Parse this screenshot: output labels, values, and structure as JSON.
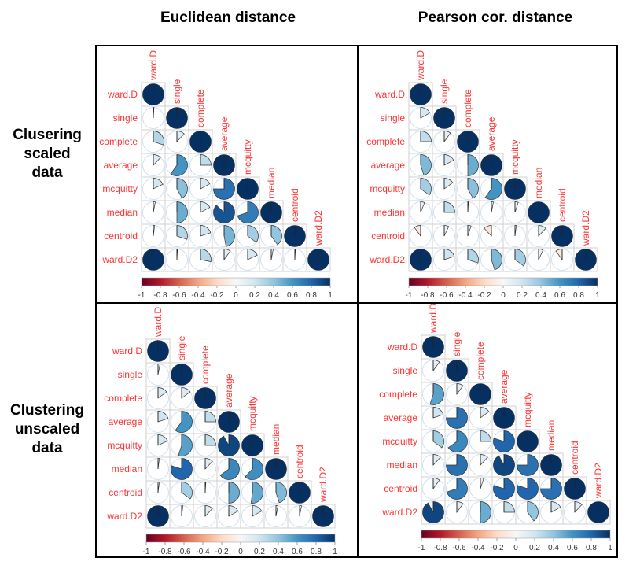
{
  "column_titles": [
    "Euclidean distance",
    "Pearson cor. distance"
  ],
  "row_titles": [
    [
      "Clusering",
      "scaled",
      "data"
    ],
    [
      "Clustering",
      "unscaled",
      "data"
    ]
  ],
  "colors": {
    "label": "#FF3333",
    "scale": [
      "#67001F",
      "#B2182B",
      "#D6604D",
      "#F4A582",
      "#FDDBC7",
      "#F7F7F7",
      "#D1E5F0",
      "#92C5DE",
      "#4393C3",
      "#2166AC",
      "#053061"
    ]
  },
  "chart_data": [
    {
      "type": "heatmap",
      "style": "corrplot-pie-lower",
      "title": "",
      "row_labels": [
        "ward.D",
        "single",
        "complete",
        "average",
        "mcquitty",
        "median",
        "centroid",
        "ward.D2"
      ],
      "col_labels": [
        "ward.D",
        "single",
        "complete",
        "average",
        "mcquitty",
        "median",
        "centroid",
        "ward.D2"
      ],
      "colorbar_ticks": [
        "-1",
        "-0.8",
        "-0.6",
        "-0.4",
        "-0.2",
        "0",
        "0.2",
        "0.4",
        "0.6",
        "0.8",
        "1"
      ],
      "value_range": [
        -1,
        1
      ],
      "lower": [
        [],
        [
          0.01
        ],
        [
          0.3,
          0.12
        ],
        [
          0.12,
          0.6,
          0.25
        ],
        [
          0.18,
          0.42,
          0.17,
          0.75
        ],
        [
          0.03,
          0.5,
          0.17,
          0.87,
          0.7
        ],
        [
          0.02,
          0.3,
          0.2,
          0.47,
          0.35,
          0.4
        ],
        [
          1.0,
          0.01,
          0.28,
          0.1,
          0.18,
          0.03,
          0.01
        ]
      ]
    },
    {
      "type": "heatmap",
      "style": "corrplot-pie-lower",
      "title": "",
      "row_labels": [
        "ward.D",
        "single",
        "complete",
        "average",
        "mcquitty",
        "median",
        "centroid",
        "ward.D2"
      ],
      "col_labels": [
        "ward.D",
        "single",
        "complete",
        "average",
        "mcquitty",
        "median",
        "centroid",
        "ward.D2"
      ],
      "colorbar_ticks": [
        "-1",
        "-0.8",
        "-0.6",
        "-0.4",
        "-0.2",
        "0",
        "0.2",
        "0.4",
        "0.6",
        "0.8",
        "1"
      ],
      "value_range": [
        -1,
        1
      ],
      "lower": [
        [],
        [
          0.17
        ],
        [
          0.25,
          0.1
        ],
        [
          0.45,
          0.17,
          0.5
        ],
        [
          0.35,
          0.15,
          0.42,
          0.6
        ],
        [
          0.06,
          0.25,
          0.01,
          0.03,
          0.05
        ],
        [
          -0.1,
          0.07,
          0.05,
          -0.12,
          0.02,
          0.12
        ],
        [
          1.0,
          0.2,
          0.3,
          0.45,
          0.35,
          0.07,
          -0.1
        ]
      ]
    },
    {
      "type": "heatmap",
      "style": "corrplot-pie-lower",
      "title": "",
      "row_labels": [
        "ward.D",
        "single",
        "complete",
        "average",
        "mcquitty",
        "median",
        "centroid",
        "ward.D2"
      ],
      "col_labels": [
        "ward.D",
        "single",
        "complete",
        "average",
        "mcquitty",
        "median",
        "centroid",
        "ward.D2"
      ],
      "colorbar_ticks": [
        "-1",
        "-0.8",
        "-0.6",
        "-0.4",
        "-0.2",
        "0",
        "0.2",
        "0.4",
        "0.6",
        "0.8",
        "1"
      ],
      "value_range": [
        -1,
        1
      ],
      "lower": [
        [],
        [
          0.03
        ],
        [
          0.15,
          0.15
        ],
        [
          0.2,
          0.6,
          0.25
        ],
        [
          0.18,
          0.55,
          0.25,
          0.92
        ],
        [
          0.02,
          0.8,
          0.12,
          0.65,
          0.62
        ],
        [
          0.02,
          0.35,
          0.01,
          0.5,
          0.52,
          0.45
        ],
        [
          1.0,
          0.02,
          0.12,
          0.17,
          0.17,
          0.03,
          0.03
        ]
      ]
    },
    {
      "type": "heatmap",
      "style": "corrplot-pie-lower",
      "title": "",
      "row_labels": [
        "ward.D",
        "single",
        "complete",
        "average",
        "mcquitty",
        "median",
        "centroid",
        "ward.D2"
      ],
      "col_labels": [
        "ward.D",
        "single",
        "complete",
        "average",
        "mcquitty",
        "median",
        "centroid",
        "ward.D2"
      ],
      "colorbar_ticks": [
        "-1",
        "-0.8",
        "-0.6",
        "-0.4",
        "-0.2",
        "0",
        "0.2",
        "0.4",
        "0.6",
        "0.8",
        "1"
      ],
      "value_range": [
        -1,
        1
      ],
      "lower": [
        [],
        [
          0.1
        ],
        [
          0.55,
          0.1
        ],
        [
          0.2,
          0.75,
          0.15
        ],
        [
          0.35,
          0.65,
          0.25,
          0.8
        ],
        [
          0.12,
          0.75,
          0.12,
          0.92,
          0.75
        ],
        [
          0.1,
          0.7,
          0.05,
          0.8,
          0.8,
          0.75
        ],
        [
          0.92,
          0.1,
          0.5,
          0.25,
          0.4,
          0.17,
          0.12
        ]
      ]
    }
  ]
}
